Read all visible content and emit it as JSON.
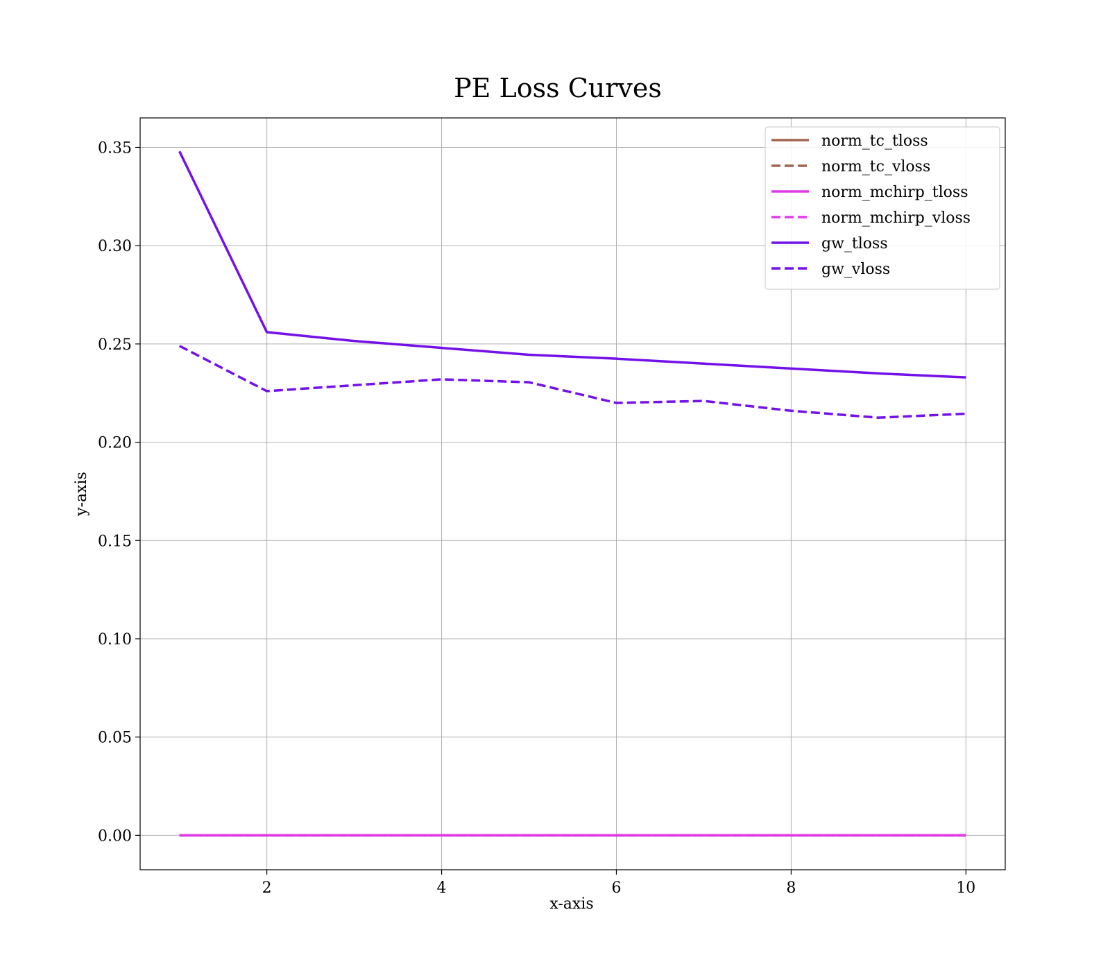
{
  "chart_data": {
    "type": "line",
    "title": "PE Loss Curves",
    "xlabel": "x-axis",
    "ylabel": "y-axis",
    "xlim": [
      0.55,
      10.45
    ],
    "ylim": [
      -0.0175,
      0.365
    ],
    "xticks": [
      2,
      4,
      6,
      8,
      10
    ],
    "xtick_labels": [
      "2",
      "4",
      "6",
      "8",
      "10"
    ],
    "yticks": [
      0.0,
      0.05,
      0.1,
      0.15,
      0.2,
      0.25,
      0.3,
      0.35
    ],
    "ytick_labels": [
      "0.00",
      "0.05",
      "0.10",
      "0.15",
      "0.20",
      "0.25",
      "0.30",
      "0.35"
    ],
    "grid": true,
    "legend_position": "top-right",
    "x": [
      1,
      2,
      3,
      4,
      5,
      6,
      7,
      8,
      9,
      10
    ],
    "series": [
      {
        "name": "norm_tc_tloss",
        "color": "#a0654f",
        "style": "solid",
        "values": [
          0,
          0,
          0,
          0,
          0,
          0,
          0,
          0,
          0,
          0
        ]
      },
      {
        "name": "norm_tc_vloss",
        "color": "#a0654f",
        "style": "dashed",
        "values": [
          0,
          0,
          0,
          0,
          0,
          0,
          0,
          0,
          0,
          0
        ]
      },
      {
        "name": "norm_mchirp_tloss",
        "color": "#e03ae8",
        "style": "solid",
        "values": [
          0,
          0,
          0,
          0,
          0,
          0,
          0,
          0,
          0,
          0
        ]
      },
      {
        "name": "norm_mchirp_vloss",
        "color": "#e03ae8",
        "style": "dashed",
        "values": [
          0,
          0,
          0,
          0,
          0,
          0,
          0,
          0,
          0,
          0
        ]
      },
      {
        "name": "gw_tloss",
        "color": "#7311e8",
        "style": "solid",
        "values": [
          0.348,
          0.256,
          0.2515,
          0.248,
          0.2445,
          0.2425,
          0.24,
          0.2375,
          0.235,
          0.233
        ]
      },
      {
        "name": "gw_vloss",
        "color": "#7311e8",
        "style": "dashed",
        "values": [
          0.249,
          0.226,
          0.229,
          0.232,
          0.2305,
          0.22,
          0.221,
          0.216,
          0.2125,
          0.2145
        ]
      }
    ]
  }
}
